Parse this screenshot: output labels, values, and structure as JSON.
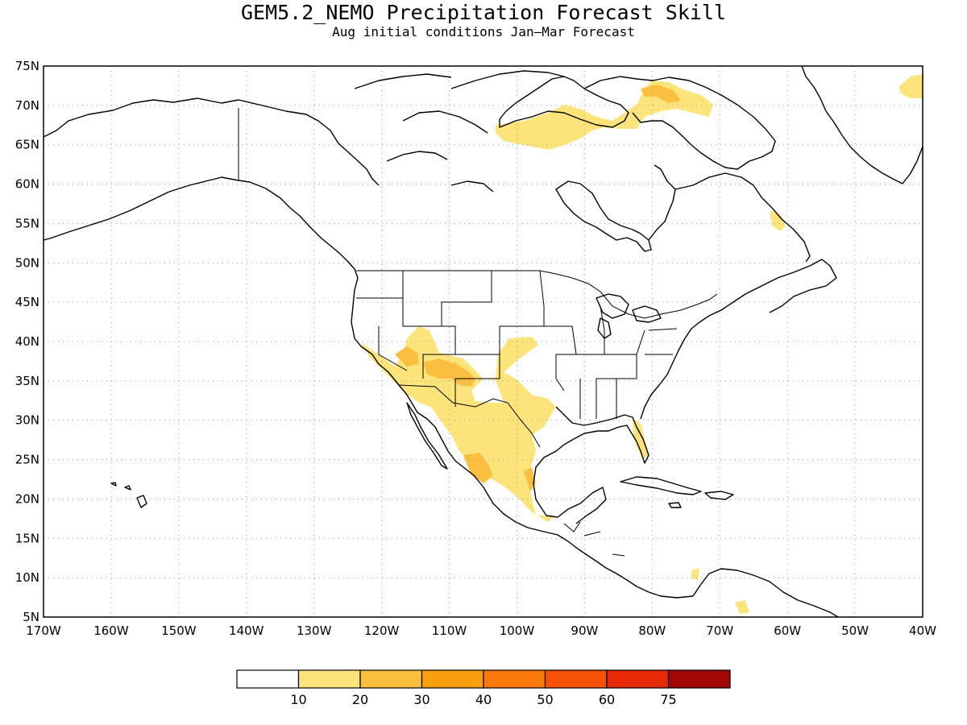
{
  "title": "GEM5.2_NEMO Precipitation Forecast Skill",
  "subtitle": "Aug initial conditions  Jan—Mar Forecast",
  "map": {
    "lon_range": [
      -170,
      -40
    ],
    "lat_range": [
      5,
      75
    ],
    "x_ticks": [
      "170W",
      "160W",
      "150W",
      "140W",
      "130W",
      "120W",
      "110W",
      "100W",
      "90W",
      "80W",
      "70W",
      "60W",
      "50W",
      "40W"
    ],
    "y_ticks": [
      "75N",
      "70N",
      "65N",
      "60N",
      "55N",
      "50N",
      "45N",
      "40N",
      "35N",
      "30N",
      "25N",
      "20N",
      "15N",
      "10N",
      "5N"
    ],
    "grid": "dotted",
    "coastline_color": "#000000"
  },
  "legend": {
    "colors": [
      "#ffffff",
      "#fde47a",
      "#fbbf40",
      "#fa9e10",
      "#f97a0a",
      "#f65205",
      "#e52a05",
      "#a10806"
    ],
    "labels": [
      "10",
      "20",
      "30",
      "40",
      "50",
      "60",
      "75"
    ]
  },
  "chart_data": {
    "type": "heatmap",
    "title": "GEM5.2_NEMO Precipitation Forecast Skill",
    "subtitle": "Aug initial conditions  Jan—Mar Forecast",
    "xlim": [
      -170,
      -40
    ],
    "ylim": [
      5,
      75
    ],
    "levels": [
      10,
      20,
      30,
      40,
      50,
      60,
      75
    ],
    "regions": [
      {
        "area": "Southwest US / Northwest Mexico",
        "range": "10-20"
      },
      {
        "area": "Four Corners / Arizona-New Mexico",
        "range": "20-30"
      },
      {
        "area": "Western Mexico / Sierra Madre",
        "range": "20-30"
      },
      {
        "area": "Texas / Southern Plains",
        "range": "10-20"
      },
      {
        "area": "Canadian Arctic Archipelago",
        "range": "10-20"
      },
      {
        "area": "Baffin Island",
        "range": "20-30"
      },
      {
        "area": "Florida",
        "range": "10-20"
      },
      {
        "area": "Labrador coast",
        "range": "10-20"
      },
      {
        "area": "Greenland east edge",
        "range": "10-20"
      }
    ]
  }
}
